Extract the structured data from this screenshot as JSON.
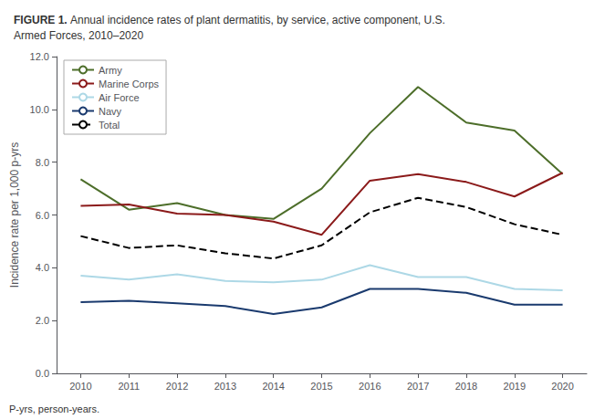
{
  "chart_data": {
    "type": "line",
    "title": "FIGURE 1.",
    "subtitle": "Annual incidence rates of plant dermatitis, by service, active component, U.S.\nArmed Forces, 2010–2020",
    "ylabel": "Incidence rate per 1,000 p-yrs",
    "annotations": [
      "P-yrs, person-years."
    ],
    "x": [
      2010,
      2011,
      2012,
      2013,
      2014,
      2015,
      2016,
      2017,
      2018,
      2019,
      2020
    ],
    "xlim": [
      2009.5,
      2020.5
    ],
    "xticks": [
      2010,
      2011,
      2012,
      2013,
      2014,
      2015,
      2016,
      2017,
      2018,
      2019,
      2020
    ],
    "ylim": [
      0.0,
      12.0
    ],
    "yticks": [
      {
        "value": 0.0,
        "label": "0.0"
      },
      {
        "value": 2.0,
        "label": "2.0"
      },
      {
        "value": 4.0,
        "label": "4.0"
      },
      {
        "value": 6.0,
        "label": "6.0"
      },
      {
        "value": 8.0,
        "label": "8.0"
      },
      {
        "value": 10.0,
        "label": "10.0"
      },
      {
        "value": 12.0,
        "label": "12.0"
      }
    ],
    "grid": false,
    "legend": "upper left",
    "series": [
      {
        "name": "Army",
        "color": "#4d6e2a",
        "line_style": "solid",
        "values": [
          7.35,
          6.2,
          6.45,
          6.0,
          5.85,
          7.0,
          9.1,
          10.85,
          9.5,
          9.2,
          7.55
        ]
      },
      {
        "name": "Marine Corps",
        "color": "#8b1a1a",
        "line_style": "solid",
        "values": [
          6.35,
          6.4,
          6.05,
          6.0,
          5.75,
          5.25,
          7.3,
          7.55,
          7.25,
          6.7,
          7.6
        ]
      },
      {
        "name": "Air Force",
        "color": "#add8e6",
        "line_style": "solid",
        "values": [
          3.7,
          3.55,
          3.75,
          3.5,
          3.45,
          3.55,
          4.1,
          3.65,
          3.65,
          3.2,
          3.15
        ]
      },
      {
        "name": "Navy",
        "color": "#1a3a6e",
        "line_style": "solid",
        "values": [
          2.7,
          2.75,
          2.65,
          2.55,
          2.25,
          2.5,
          3.2,
          3.2,
          3.05,
          2.6,
          2.6
        ]
      },
      {
        "name": "Total",
        "color": "#000000",
        "line_style": "dashed",
        "values": [
          5.2,
          4.75,
          4.85,
          4.55,
          4.35,
          4.85,
          6.1,
          6.65,
          6.3,
          5.65,
          5.25
        ]
      }
    ]
  }
}
